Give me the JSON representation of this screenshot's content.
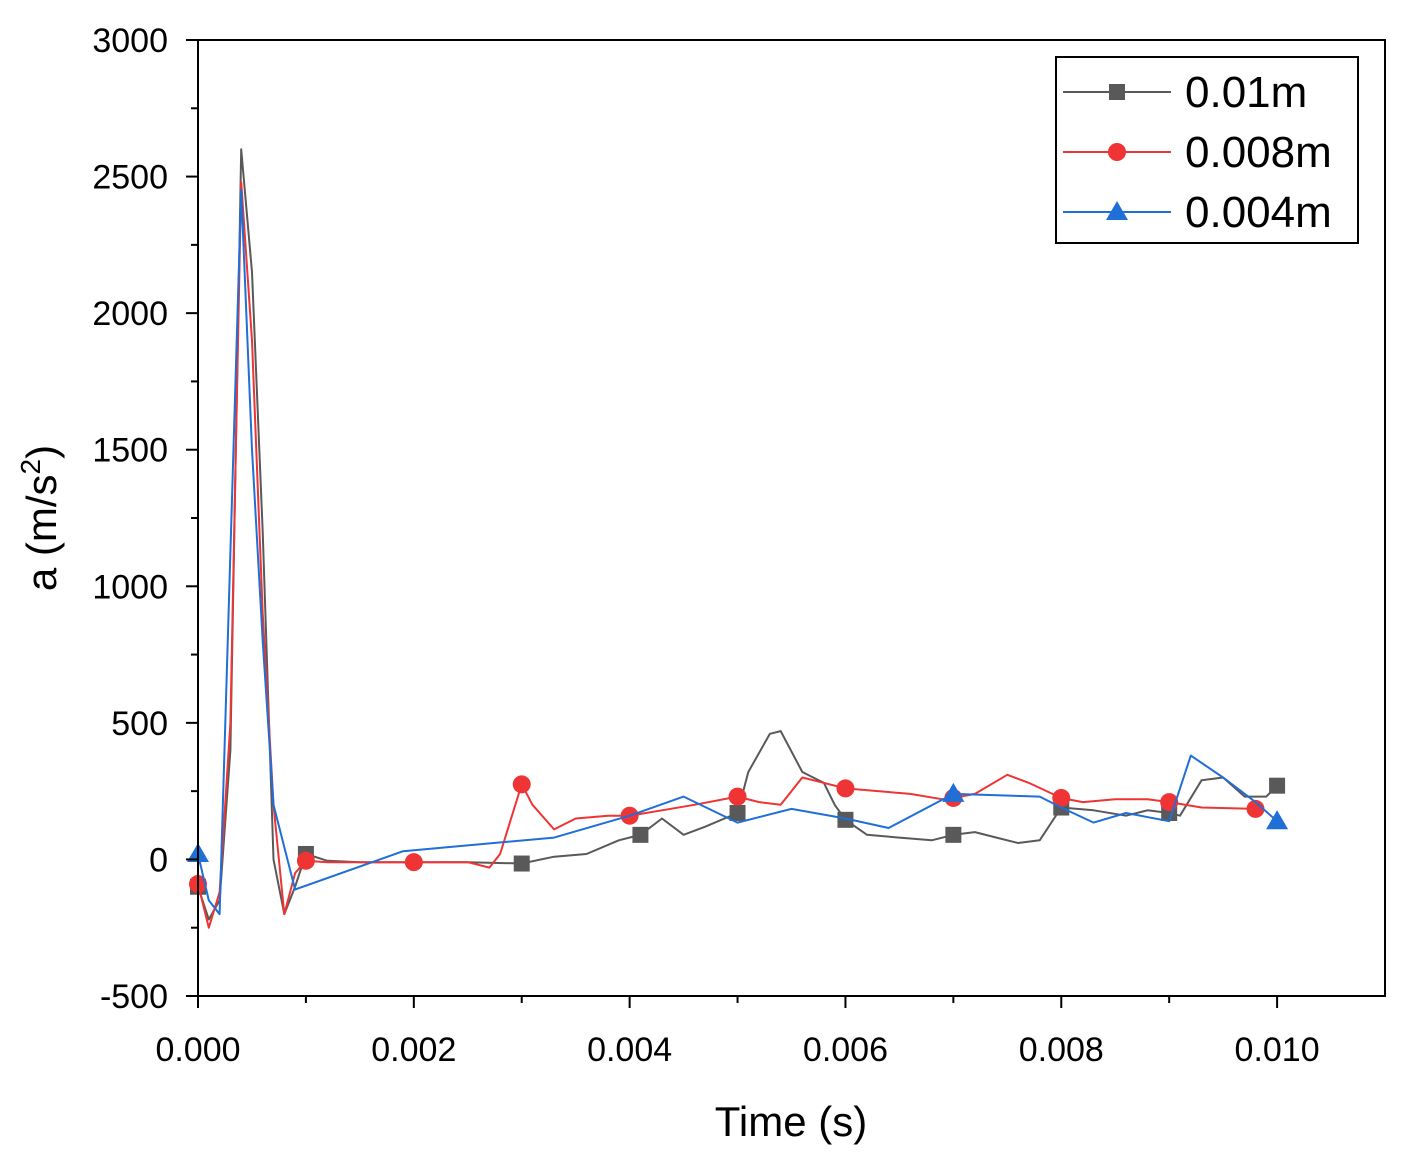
{
  "chart_data": {
    "type": "line",
    "title": "",
    "xlabel": "Time (s)",
    "ylabel_main": "a (m/s",
    "ylabel_sup": "2",
    "ylabel_close": ")",
    "xlim": [
      0,
      0.011
    ],
    "ylim": [
      -500,
      3000
    ],
    "x_ticks": [
      0,
      0.002,
      0.004,
      0.006,
      0.008,
      0.01
    ],
    "x_tick_labels": [
      "0.000",
      "0.002",
      "0.004",
      "0.006",
      "0.008",
      "0.010"
    ],
    "y_ticks": [
      -500,
      0,
      500,
      1000,
      1500,
      2000,
      2500,
      3000
    ],
    "y_tick_labels": [
      "-500",
      "0",
      "500",
      "1000",
      "1500",
      "2000",
      "2500",
      "3000"
    ],
    "grid": false,
    "legend_position": "top-right",
    "series": [
      {
        "name": "0.01m",
        "color": "#595959",
        "marker": "square",
        "x": [
          0,
          0.0001,
          0.0002,
          0.0003,
          0.0004,
          0.0005,
          0.0006,
          0.0007,
          0.0008,
          0.0009,
          0.001,
          0.0012,
          0.0015,
          0.002,
          0.0025,
          0.003,
          0.0033,
          0.0036,
          0.0039,
          0.0041,
          0.0043,
          0.0045,
          0.0047,
          0.005,
          0.0051,
          0.0053,
          0.0054,
          0.0056,
          0.0058,
          0.0059,
          0.006,
          0.0062,
          0.0065,
          0.0068,
          0.007,
          0.0072,
          0.0074,
          0.0076,
          0.0078,
          0.008,
          0.0083,
          0.0086,
          0.0088,
          0.009,
          0.0091,
          0.0093,
          0.0095,
          0.0097,
          0.0099,
          0.01
        ],
        "y": [
          -100,
          -220,
          -150,
          400,
          2600,
          2150,
          1200,
          0,
          -200,
          -100,
          20,
          -5,
          -10,
          -10,
          -10,
          -15,
          10,
          20,
          70,
          90,
          150,
          90,
          120,
          170,
          320,
          460,
          470,
          320,
          280,
          200,
          145,
          90,
          80,
          70,
          90,
          100,
          80,
          60,
          70,
          190,
          180,
          160,
          180,
          170,
          160,
          290,
          300,
          230,
          230,
          270
        ],
        "marker_indices": [
          0,
          10,
          15,
          19,
          23,
          30,
          34,
          39,
          43,
          49
        ]
      },
      {
        "name": "0.008m",
        "color": "#ee3434",
        "marker": "circle",
        "x": [
          0,
          0.0001,
          0.0002,
          0.0003,
          0.0004,
          0.0005,
          0.0006,
          0.0007,
          0.0008,
          0.0009,
          0.001,
          0.0012,
          0.0015,
          0.002,
          0.0025,
          0.0027,
          0.0028,
          0.003,
          0.0031,
          0.0033,
          0.0035,
          0.0038,
          0.004,
          0.0043,
          0.0046,
          0.005,
          0.0052,
          0.0054,
          0.0056,
          0.0057,
          0.006,
          0.0063,
          0.0066,
          0.0069,
          0.007,
          0.0072,
          0.0075,
          0.0077,
          0.008,
          0.0082,
          0.0085,
          0.0088,
          0.009,
          0.0093,
          0.0098
        ],
        "y": [
          -90,
          -250,
          -120,
          500,
          2480,
          1900,
          900,
          200,
          -200,
          -50,
          -5,
          -10,
          -10,
          -10,
          -10,
          -30,
          20,
          275,
          200,
          110,
          150,
          160,
          160,
          180,
          200,
          230,
          210,
          200,
          300,
          290,
          260,
          250,
          240,
          220,
          225,
          240,
          310,
          280,
          225,
          210,
          220,
          220,
          210,
          190,
          185
        ],
        "marker_indices": [
          0,
          10,
          13,
          17,
          22,
          25,
          30,
          34,
          38,
          42,
          44
        ]
      },
      {
        "name": "0.004m",
        "color": "#1f6fd6",
        "marker": "triangle",
        "x": [
          0,
          0.0001,
          0.0002,
          0.0004,
          0.0005,
          0.0006,
          0.0007,
          0.0009,
          0.0019,
          0.0033,
          0.004,
          0.0045,
          0.005,
          0.0055,
          0.006,
          0.0064,
          0.007,
          0.0078,
          0.008,
          0.0083,
          0.0086,
          0.009,
          0.0092,
          0.0095,
          0.0098,
          0.01
        ],
        "y": [
          20,
          -150,
          -200,
          2450,
          1500,
          800,
          200,
          -110,
          30,
          80,
          160,
          230,
          135,
          185,
          150,
          115,
          240,
          230,
          190,
          135,
          170,
          140,
          380,
          300,
          210,
          140
        ],
        "marker_indices": [
          0,
          16,
          25
        ]
      }
    ]
  }
}
